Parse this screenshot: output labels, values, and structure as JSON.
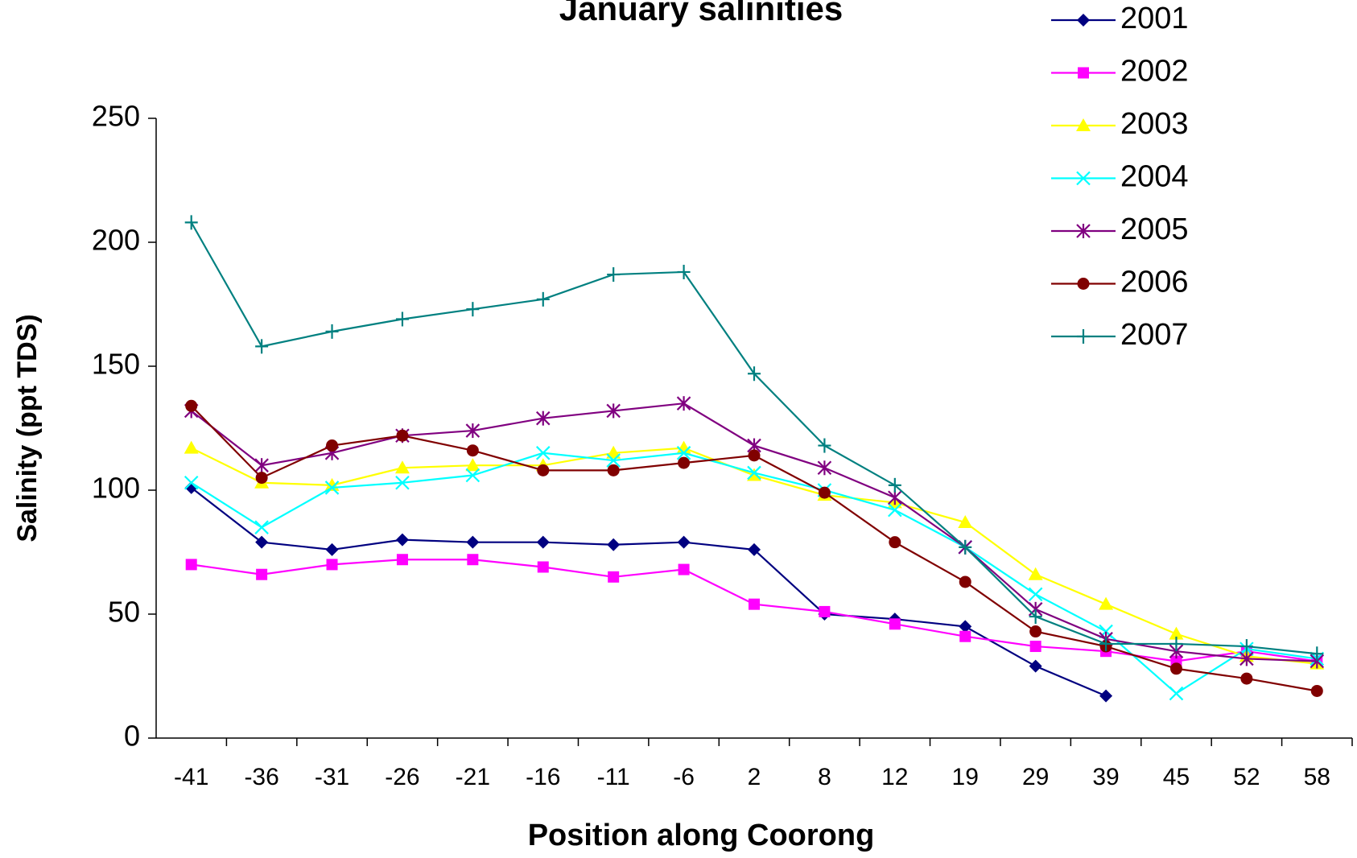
{
  "chart_data": {
    "type": "line",
    "title": "January salinities",
    "x_label": "Position along Coorong",
    "y_label": "Salinity (ppt TDS)",
    "categories": [
      "-41",
      "-36",
      "-31",
      "-26",
      "-21",
      "-16",
      "-11",
      "-6",
      "2",
      "8",
      "12",
      "19",
      "29",
      "39",
      "45",
      "52",
      "58"
    ],
    "ylim": [
      0,
      250
    ],
    "yticks": [
      0,
      50,
      100,
      150,
      200,
      250
    ],
    "grid": false,
    "legend": "top-right",
    "series": [
      {
        "name": "2001",
        "color": "#000080",
        "marker": "diamond",
        "values": [
          101,
          79,
          76,
          80,
          79,
          79,
          78,
          79,
          76,
          50,
          48,
          45,
          29,
          17,
          null,
          null,
          null
        ]
      },
      {
        "name": "2002",
        "color": "#ff00ff",
        "marker": "square",
        "values": [
          70,
          66,
          70,
          72,
          72,
          69,
          65,
          68,
          54,
          51,
          46,
          41,
          37,
          35,
          31,
          35,
          31
        ]
      },
      {
        "name": "2003",
        "color": "#ffff00",
        "marker": "triangle",
        "values": [
          117,
          103,
          102,
          109,
          110,
          110,
          115,
          117,
          106,
          98,
          95,
          87,
          66,
          54,
          42,
          33,
          30
        ]
      },
      {
        "name": "2004",
        "color": "#00ffff",
        "marker": "x",
        "values": [
          103,
          85,
          101,
          103,
          106,
          115,
          112,
          115,
          107,
          100,
          92,
          77,
          58,
          43,
          18,
          36,
          32
        ]
      },
      {
        "name": "2005",
        "color": "#800080",
        "marker": "asterisk",
        "values": [
          132,
          110,
          115,
          122,
          124,
          129,
          132,
          135,
          118,
          109,
          97,
          77,
          52,
          40,
          35,
          32,
          31
        ]
      },
      {
        "name": "2006",
        "color": "#800000",
        "marker": "circle",
        "values": [
          134,
          105,
          118,
          122,
          116,
          108,
          108,
          111,
          114,
          99,
          79,
          63,
          43,
          37,
          28,
          24,
          19
        ]
      },
      {
        "name": "2007",
        "color": "#008080",
        "marker": "plus",
        "values": [
          208,
          158,
          164,
          169,
          173,
          177,
          187,
          188,
          147,
          118,
          102,
          77,
          49,
          38,
          38,
          37,
          34
        ]
      }
    ]
  }
}
